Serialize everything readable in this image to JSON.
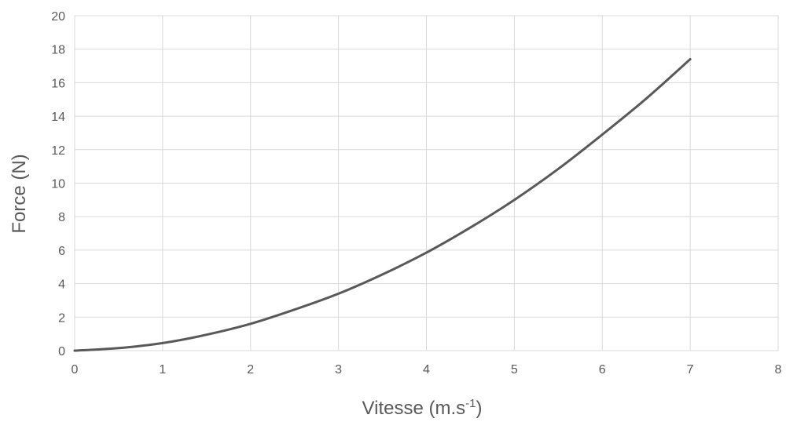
{
  "chart_data": {
    "type": "line",
    "title": "",
    "xlabel": {
      "base": "Vitesse (m.s",
      "sup": "-1",
      "close": ")"
    },
    "ylabel": "Force (N)",
    "xlim": [
      0,
      8
    ],
    "ylim": [
      0,
      20
    ],
    "xticks": [
      "0",
      "1",
      "2",
      "3",
      "4",
      "5",
      "6",
      "7",
      "8"
    ],
    "yticks": [
      "0",
      "2",
      "4",
      "6",
      "8",
      "10",
      "12",
      "14",
      "16",
      "18",
      "20"
    ],
    "grid": true,
    "legend": "none",
    "series": [
      {
        "color": "#595959",
        "x": [
          0,
          0.5,
          1,
          1.5,
          2,
          2.5,
          3,
          3.5,
          4,
          4.5,
          5,
          5.5,
          6,
          6.5,
          7
        ],
        "y": [
          0,
          0.15,
          0.45,
          0.95,
          1.6,
          2.45,
          3.4,
          4.55,
          5.85,
          7.35,
          9.0,
          10.85,
          12.9,
          15.05,
          17.4
        ]
      }
    ]
  }
}
